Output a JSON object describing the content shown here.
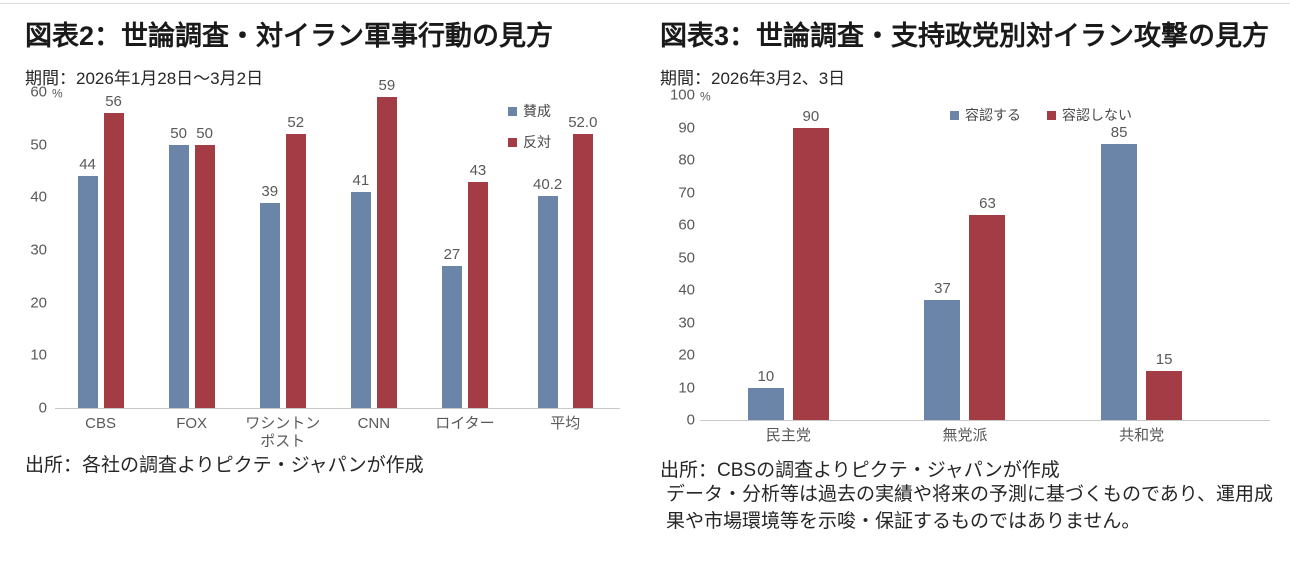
{
  "colors": {
    "approve_blue": "#6B85A8",
    "oppose_red": "#A33C44",
    "axis_text": "#595959",
    "title_text": "#1a1a1a",
    "body_text": "#262626",
    "baseline": "#c8c8c8"
  },
  "chart_data": [
    {
      "type": "bar",
      "title": "図表2：世論調査・対イラン軍事行動の見方",
      "subtitle": "期間：2026年1月28日～3月2日",
      "source": "出所：各社の調査よりピクテ・ジャパンが作成",
      "unit": "%",
      "ylim": [
        0,
        60
      ],
      "ytick_step": 10,
      "grid": false,
      "legend_position": "inside top-right, vertical",
      "categories": [
        "CBS",
        "FOX",
        "ワシントン\nポスト",
        "CNN",
        "ロイター",
        "平均"
      ],
      "series": [
        {
          "key": "approve",
          "name": "賛成",
          "color_key": "approve_blue",
          "values": [
            44,
            50,
            39,
            41,
            27,
            40.2
          ],
          "labels": [
            "44",
            "50",
            "39",
            "41",
            "27",
            "40.2"
          ]
        },
        {
          "key": "oppose",
          "name": "反対",
          "color_key": "oppose_red",
          "values": [
            56,
            50,
            52,
            59,
            43,
            52.0
          ],
          "labels": [
            "56",
            "50",
            "52",
            "59",
            "43",
            "52.0"
          ]
        }
      ]
    },
    {
      "type": "bar",
      "title": "図表3：世論調査・支持政党別対イラン攻撃の見方",
      "subtitle": "期間：2026年3月2、3日",
      "source": "出所：CBSの調査よりピクテ・ジャパンが作成",
      "disclaimer": "データ・分析等は過去の実績や将来の予測に基づくものであり、運用成果や市場環境等を示唆・保証するものではありません。",
      "unit": "%",
      "ylim": [
        0,
        100
      ],
      "ytick_step": 10,
      "grid": false,
      "legend_position": "inside top, horizontal",
      "categories": [
        "民主党",
        "無党派",
        "共和党"
      ],
      "series": [
        {
          "key": "accept",
          "name": "容認する",
          "color_key": "approve_blue",
          "values": [
            10,
            37,
            85
          ],
          "labels": [
            "10",
            "37",
            "85"
          ]
        },
        {
          "key": "not-accept",
          "name": "容認しない",
          "color_key": "oppose_red",
          "values": [
            90,
            63,
            15
          ],
          "labels": [
            "90",
            "63",
            "15"
          ]
        }
      ]
    }
  ]
}
